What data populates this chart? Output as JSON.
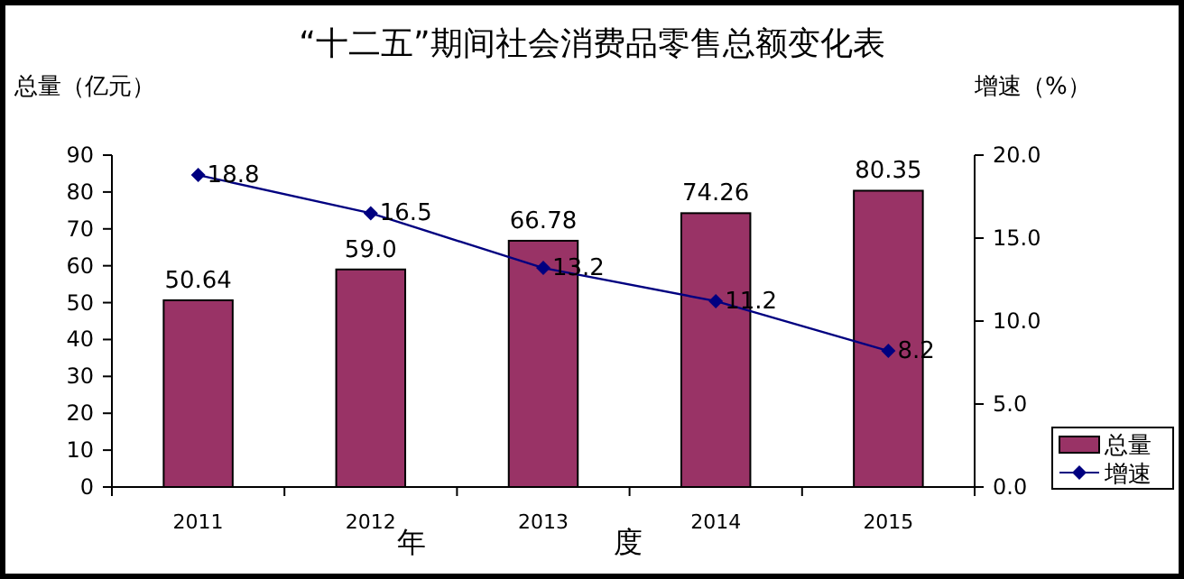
{
  "chart_data": {
    "type": "bar",
    "title": "“十二五”期间社会消费品零售总额变化表",
    "ylabel": "总量（亿元）",
    "y2label": "增速（%）",
    "xlabel": "年　　　度",
    "categories": [
      "2011",
      "2012",
      "2013",
      "2014",
      "2015"
    ],
    "series": [
      {
        "name": "总量",
        "color": "#993366",
        "values": [
          50.64,
          59.0,
          66.78,
          74.26,
          80.35
        ],
        "value_labels": [
          "50.64",
          "59.0",
          "66.78",
          "74.26",
          "80.35"
        ]
      },
      {
        "name": "增速",
        "type": "line",
        "axis": "y2",
        "color": "#000080",
        "marker": "diamond",
        "values": [
          18.8,
          16.5,
          13.2,
          11.2,
          8.2
        ],
        "value_labels": [
          "18.8",
          "16.5",
          "13.2",
          "11.2",
          "8.2"
        ]
      }
    ],
    "ylim": [
      0,
      90
    ],
    "yticks": [
      0,
      10,
      20,
      30,
      40,
      50,
      60,
      70,
      80,
      90
    ],
    "y2lim": [
      0,
      20
    ],
    "y2ticks": [
      {
        "value": 0,
        "label": "0.0"
      },
      {
        "value": 5,
        "label": "5.0"
      },
      {
        "value": 10,
        "label": "10.0"
      },
      {
        "value": 15,
        "label": "15.0"
      },
      {
        "value": 20,
        "label": "20.0"
      }
    ],
    "grid": false,
    "legend": "bottom right"
  }
}
